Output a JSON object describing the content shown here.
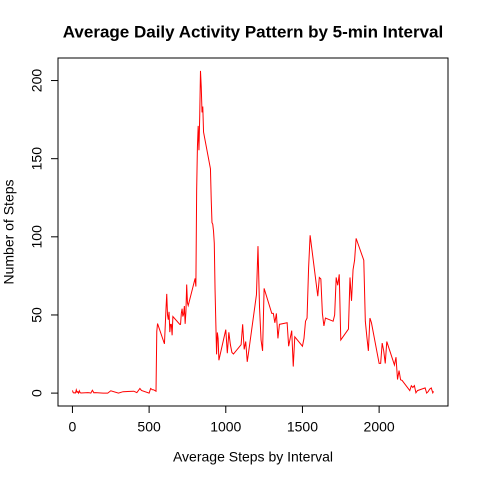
{
  "chart_data": {
    "type": "line",
    "title": "Average Daily Activity Pattern by 5-min Interval",
    "xlabel": "Average Steps by Interval",
    "ylabel": "Number of Steps",
    "x": [
      0,
      5,
      10,
      15,
      20,
      25,
      30,
      35,
      40,
      45,
      50,
      55,
      100,
      110,
      120,
      130,
      140,
      150,
      200,
      230,
      250,
      300,
      330,
      400,
      420,
      440,
      450,
      500,
      510,
      520,
      530,
      545,
      550,
      555,
      600,
      610,
      615,
      620,
      625,
      630,
      635,
      640,
      645,
      650,
      655,
      700,
      705,
      710,
      715,
      720,
      725,
      730,
      735,
      740,
      745,
      750,
      755,
      800,
      805,
      810,
      815,
      820,
      825,
      830,
      835,
      840,
      845,
      850,
      855,
      900,
      905,
      910,
      915,
      920,
      925,
      930,
      935,
      940,
      945,
      950,
      955,
      1000,
      1010,
      1020,
      1030,
      1040,
      1050,
      1100,
      1110,
      1120,
      1130,
      1140,
      1150,
      1200,
      1210,
      1220,
      1230,
      1240,
      1250,
      1300,
      1310,
      1320,
      1330,
      1340,
      1350,
      1400,
      1410,
      1420,
      1430,
      1440,
      1450,
      1500,
      1510,
      1520,
      1530,
      1540,
      1550,
      1600,
      1610,
      1620,
      1630,
      1640,
      1650,
      1700,
      1710,
      1720,
      1730,
      1740,
      1750,
      1800,
      1810,
      1820,
      1830,
      1840,
      1850,
      1900,
      1910,
      1920,
      1930,
      1940,
      1950,
      2000,
      2010,
      2020,
      2030,
      2040,
      2050,
      2100,
      2110,
      2120,
      2130,
      2140,
      2150,
      2200,
      2210,
      2220,
      2230,
      2240,
      2250,
      2300,
      2310,
      2320,
      2330,
      2340,
      2350,
      2355
    ],
    "series": [
      {
        "name": "steps",
        "color": "#ff0000",
        "values": [
          1.7,
          0.3,
          0.1,
          0.2,
          0.1,
          2.1,
          0.5,
          0.9,
          0,
          1.5,
          0.3,
          0.1,
          0.3,
          0.2,
          0,
          1.8,
          0.2,
          0.3,
          0,
          0,
          1.5,
          0,
          0.9,
          1.2,
          0.3,
          3,
          1.7,
          0,
          3,
          2.2,
          2.1,
          1.2,
          39.5,
          44.5,
          31.5,
          53.8,
          63.5,
          50,
          47,
          52,
          39,
          44,
          44,
          37,
          49,
          44,
          44,
          51,
          54,
          49,
          50.5,
          55.7,
          44.3,
          52,
          69.5,
          57.8,
          56,
          73.4,
          68.2,
          129.4,
          157.5,
          171,
          155.4,
          177.3,
          206.2,
          195.9,
          179.6,
          183.4,
          167,
          143.5,
          124,
          109.1,
          108.1,
          103.7,
          95.9,
          66.2,
          45.2,
          24.8,
          38.8,
          35,
          21,
          40.6,
          25.5,
          38.9,
          31,
          26,
          25,
          31,
          44,
          28,
          33,
          20,
          27,
          63,
          94,
          55,
          34,
          27,
          67,
          51,
          51,
          45,
          51,
          35,
          44,
          45,
          30,
          35,
          40,
          17,
          36,
          30,
          35,
          46,
          48,
          80,
          101,
          62,
          74,
          73,
          51,
          43,
          48,
          46,
          50,
          74,
          69,
          76,
          34,
          41,
          74,
          59,
          79,
          85,
          99,
          85,
          46,
          36,
          27,
          48,
          45,
          19,
          19,
          32,
          27,
          19,
          33,
          18,
          23,
          8.7,
          14.4,
          8.5,
          8.1,
          1.6,
          4.7,
          3.6,
          4.8,
          0.2,
          1.6,
          3.3,
          0,
          1,
          2.6,
          3.3,
          0.2,
          1.1
        ]
      }
    ],
    "xlim": [
      -94.2,
      2449.2
    ],
    "ylim": [
      -8.25,
      214.42
    ],
    "xticks": [
      0,
      500,
      1000,
      1500,
      2000
    ],
    "yticks": [
      0,
      50,
      100,
      150,
      200
    ]
  }
}
